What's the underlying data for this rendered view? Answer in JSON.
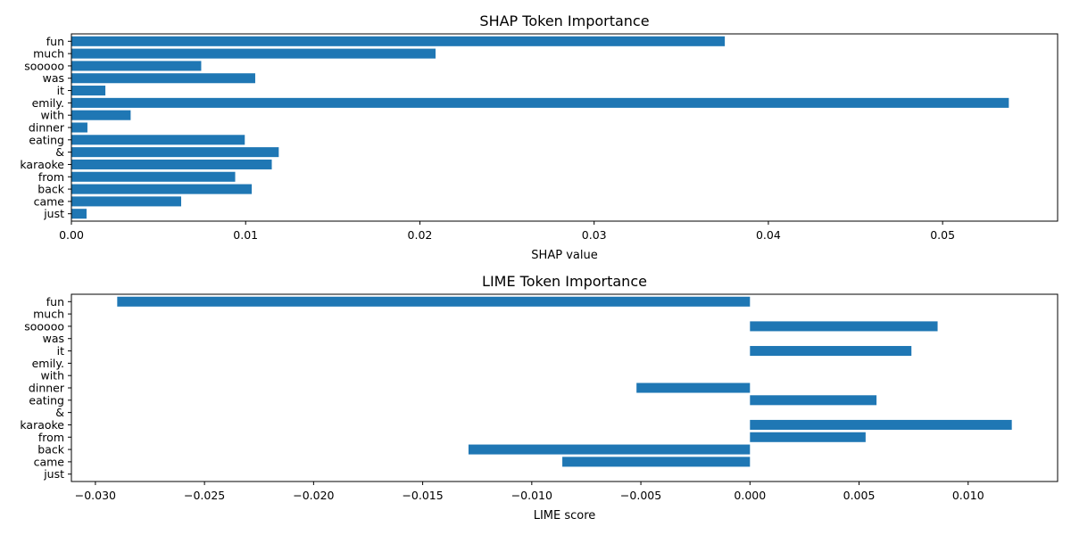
{
  "chart_data": [
    {
      "type": "bar",
      "orientation": "horizontal",
      "title": "SHAP Token Importance",
      "xlabel": "SHAP value",
      "ylabel": "",
      "categories": [
        "just",
        "came",
        "back",
        "from",
        "karaoke",
        "&",
        "eating",
        "dinner",
        "with",
        "emily.",
        "it",
        "was",
        "sooooo",
        "much",
        "fun"
      ],
      "values": [
        0.00087,
        0.0063,
        0.01035,
        0.0094,
        0.0115,
        0.0119,
        0.00995,
        0.00092,
        0.0034,
        0.0538,
        0.00195,
        0.01055,
        0.00745,
        0.0209,
        0.0375
      ],
      "xlim": [
        0,
        0.0566
      ],
      "xticks": [
        0.0,
        0.01,
        0.02,
        0.03,
        0.04,
        0.05
      ],
      "xtick_labels": [
        "0.00",
        "0.01",
        "0.02",
        "0.03",
        "0.04",
        "0.05"
      ],
      "color": "#1f77b4",
      "grid": false
    },
    {
      "type": "bar",
      "orientation": "horizontal",
      "title": "LIME Token Importance",
      "xlabel": "LIME score",
      "ylabel": "",
      "categories": [
        "just",
        "came",
        "back",
        "from",
        "karaoke",
        "&",
        "eating",
        "dinner",
        "with",
        "emily.",
        "it",
        "was",
        "sooooo",
        "much",
        "fun"
      ],
      "values": [
        0,
        -0.0086,
        -0.0129,
        0.0053,
        0.012,
        0,
        0.0058,
        -0.0052,
        0,
        0,
        0.0074,
        0,
        0.0086,
        0,
        -0.029
      ],
      "xlim": [
        -0.0311,
        0.0141
      ],
      "xticks": [
        -0.03,
        -0.025,
        -0.02,
        -0.015,
        -0.01,
        -0.005,
        0.0,
        0.005,
        0.01
      ],
      "xtick_labels": [
        "−0.030",
        "−0.025",
        "−0.020",
        "−0.015",
        "−0.010",
        "−0.005",
        "0.000",
        "0.005",
        "0.010"
      ],
      "color": "#1f77b4",
      "grid": false
    }
  ]
}
